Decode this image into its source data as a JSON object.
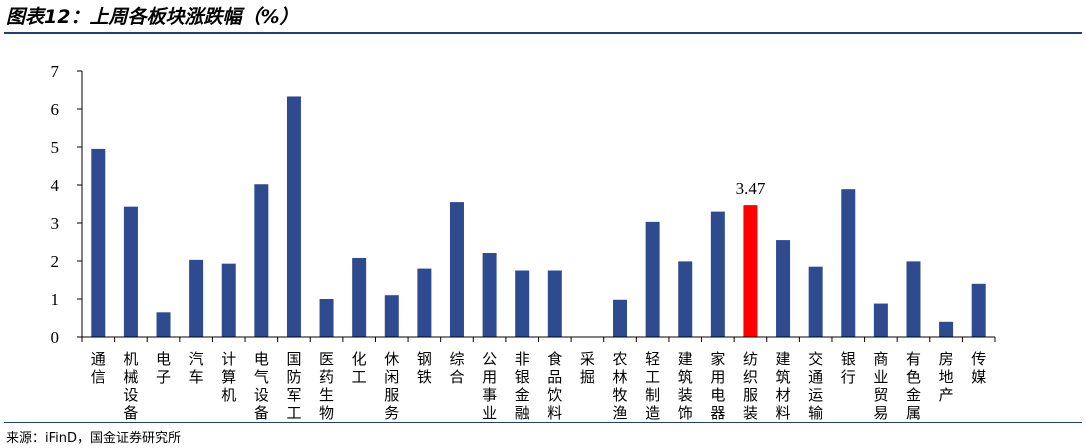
{
  "header": {
    "title": "图表12：上周各板块涨跌幅（%）"
  },
  "footer": {
    "source": "来源：iFinD，国金证券研究所"
  },
  "chart_data": {
    "type": "bar",
    "title": "图表12：上周各板块涨跌幅（%）",
    "xlabel": "",
    "ylabel": "",
    "ylim": [
      0,
      7
    ],
    "yticks": [
      0,
      1,
      2,
      3,
      4,
      5,
      6,
      7
    ],
    "grid": false,
    "legend": "none",
    "categories": [
      "通信",
      "机械设备",
      "电子",
      "汽车",
      "计算机",
      "电气设备",
      "国防军工",
      "医药生物",
      "化工",
      "休闲服务",
      "钢铁",
      "综合",
      "公用事业",
      "非银金融",
      "食品饮料",
      "采掘",
      "农林牧渔",
      "轻工制造",
      "建筑装饰",
      "家用电器",
      "纺织服装",
      "建筑材料",
      "交通运输",
      "银行",
      "商业贸易",
      "有色金属",
      "房地产",
      "传媒"
    ],
    "values": [
      4.95,
      3.43,
      0.65,
      2.03,
      1.93,
      4.02,
      6.33,
      1.0,
      2.08,
      1.1,
      1.8,
      3.55,
      2.21,
      1.75,
      1.75,
      0,
      0.98,
      3.03,
      1.99,
      3.3,
      3.47,
      2.55,
      1.85,
      3.89,
      0.88,
      1.99,
      0.4,
      1.4
    ],
    "bar_color": "#2e4b8f",
    "highlight_color": "#ff0000",
    "highlight_index": 20,
    "data_labels": [
      {
        "index": 20,
        "text": "3.47"
      }
    ]
  }
}
